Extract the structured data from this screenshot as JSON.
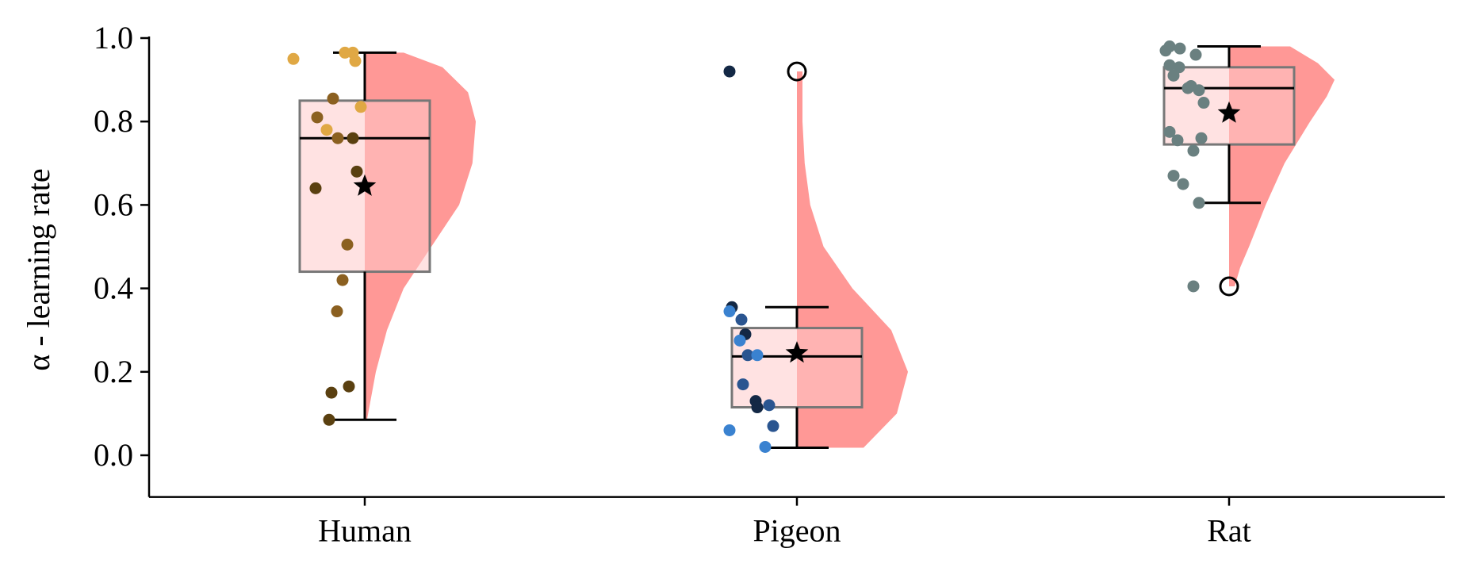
{
  "chart_data": {
    "type": "raincloud",
    "title": "",
    "xlabel": "",
    "ylabel": "α - learning rate",
    "ylim": [
      -0.1,
      1.0
    ],
    "yticks": [
      0.0,
      0.2,
      0.4,
      0.6,
      0.8,
      1.0
    ],
    "ytick_labels": [
      "0.0",
      "0.2",
      "0.4",
      "0.6",
      "0.8",
      "1.0"
    ],
    "categories": [
      "Human",
      "Pigeon",
      "Rat"
    ],
    "colors": {
      "violin": "#ff9896",
      "box_fill": "#ffcaca",
      "box_edge": "#777777",
      "whisker": "#000000",
      "mean_marker": "#000000"
    },
    "groups": [
      {
        "name": "Human",
        "box": {
          "q1": 0.44,
          "median": 0.76,
          "q3": 0.85,
          "whisker_low": 0.085,
          "whisker_high": 0.965
        },
        "mean": 0.645,
        "outliers": [],
        "density": [
          [
            0.085,
            0.02
          ],
          [
            0.2,
            0.1
          ],
          [
            0.3,
            0.2
          ],
          [
            0.4,
            0.35
          ],
          [
            0.5,
            0.6
          ],
          [
            0.6,
            0.85
          ],
          [
            0.7,
            0.97
          ],
          [
            0.8,
            1.0
          ],
          [
            0.87,
            0.93
          ],
          [
            0.93,
            0.7
          ],
          [
            0.965,
            0.35
          ]
        ],
        "points": [
          {
            "y": 0.965,
            "color": "#e0a844"
          },
          {
            "y": 0.965,
            "color": "#e0a844"
          },
          {
            "y": 0.95,
            "color": "#e0a844"
          },
          {
            "y": 0.945,
            "color": "#e0a844"
          },
          {
            "y": 0.855,
            "color": "#8b6020"
          },
          {
            "y": 0.835,
            "color": "#e0a844"
          },
          {
            "y": 0.81,
            "color": "#8b6020"
          },
          {
            "y": 0.78,
            "color": "#e0a844"
          },
          {
            "y": 0.76,
            "color": "#5a4010"
          },
          {
            "y": 0.76,
            "color": "#8b6020"
          },
          {
            "y": 0.68,
            "color": "#5a4010"
          },
          {
            "y": 0.64,
            "color": "#5a4010"
          },
          {
            "y": 0.505,
            "color": "#8b6020"
          },
          {
            "y": 0.42,
            "color": "#8b6020"
          },
          {
            "y": 0.345,
            "color": "#8b6020"
          },
          {
            "y": 0.165,
            "color": "#5a4010"
          },
          {
            "y": 0.15,
            "color": "#5a4010"
          },
          {
            "y": 0.085,
            "color": "#5a4010"
          }
        ]
      },
      {
        "name": "Pigeon",
        "box": {
          "q1": 0.115,
          "median": 0.237,
          "q3": 0.305,
          "whisker_low": 0.018,
          "whisker_high": 0.355
        },
        "mean": 0.245,
        "outliers": [
          0.92
        ],
        "density": [
          [
            0.018,
            0.6
          ],
          [
            0.1,
            0.9
          ],
          [
            0.2,
            1.0
          ],
          [
            0.3,
            0.85
          ],
          [
            0.4,
            0.5
          ],
          [
            0.5,
            0.24
          ],
          [
            0.6,
            0.12
          ],
          [
            0.7,
            0.07
          ],
          [
            0.8,
            0.05
          ],
          [
            0.92,
            0.05
          ]
        ],
        "points": [
          {
            "y": 0.92,
            "color": "#132845"
          },
          {
            "y": 0.355,
            "color": "#132845"
          },
          {
            "y": 0.345,
            "color": "#3a82d0"
          },
          {
            "y": 0.325,
            "color": "#2a5590"
          },
          {
            "y": 0.29,
            "color": "#132845"
          },
          {
            "y": 0.275,
            "color": "#3a82d0"
          },
          {
            "y": 0.24,
            "color": "#2a5590"
          },
          {
            "y": 0.24,
            "color": "#3a82d0"
          },
          {
            "y": 0.17,
            "color": "#2a5590"
          },
          {
            "y": 0.13,
            "color": "#132845"
          },
          {
            "y": 0.12,
            "color": "#2a5590"
          },
          {
            "y": 0.115,
            "color": "#132845"
          },
          {
            "y": 0.07,
            "color": "#2a5590"
          },
          {
            "y": 0.06,
            "color": "#3a82d0"
          },
          {
            "y": 0.02,
            "color": "#3a82d0"
          }
        ]
      },
      {
        "name": "Rat",
        "box": {
          "q1": 0.745,
          "median": 0.88,
          "q3": 0.93,
          "whisker_low": 0.605,
          "whisker_high": 0.98
        },
        "mean": 0.82,
        "outliers": [
          0.405
        ],
        "density": [
          [
            0.405,
            0.05
          ],
          [
            0.45,
            0.1
          ],
          [
            0.5,
            0.18
          ],
          [
            0.6,
            0.33
          ],
          [
            0.7,
            0.5
          ],
          [
            0.8,
            0.73
          ],
          [
            0.86,
            0.88
          ],
          [
            0.9,
            0.95
          ],
          [
            0.94,
            0.8
          ],
          [
            0.98,
            0.55
          ]
        ],
        "points": [
          {
            "y": 0.98,
            "color": "#6a8080"
          },
          {
            "y": 0.975,
            "color": "#6a8080"
          },
          {
            "y": 0.97,
            "color": "#6a8080"
          },
          {
            "y": 0.96,
            "color": "#6a8080"
          },
          {
            "y": 0.935,
            "color": "#6a8080"
          },
          {
            "y": 0.93,
            "color": "#6a8080"
          },
          {
            "y": 0.91,
            "color": "#6a8080"
          },
          {
            "y": 0.885,
            "color": "#6a8080"
          },
          {
            "y": 0.88,
            "color": "#6a8080"
          },
          {
            "y": 0.875,
            "color": "#6a8080"
          },
          {
            "y": 0.845,
            "color": "#6a8080"
          },
          {
            "y": 0.775,
            "color": "#6a8080"
          },
          {
            "y": 0.76,
            "color": "#6a8080"
          },
          {
            "y": 0.755,
            "color": "#6a8080"
          },
          {
            "y": 0.73,
            "color": "#6a8080"
          },
          {
            "y": 0.67,
            "color": "#6a8080"
          },
          {
            "y": 0.65,
            "color": "#6a8080"
          },
          {
            "y": 0.605,
            "color": "#6a8080"
          },
          {
            "y": 0.405,
            "color": "#6a8080"
          }
        ]
      }
    ]
  }
}
